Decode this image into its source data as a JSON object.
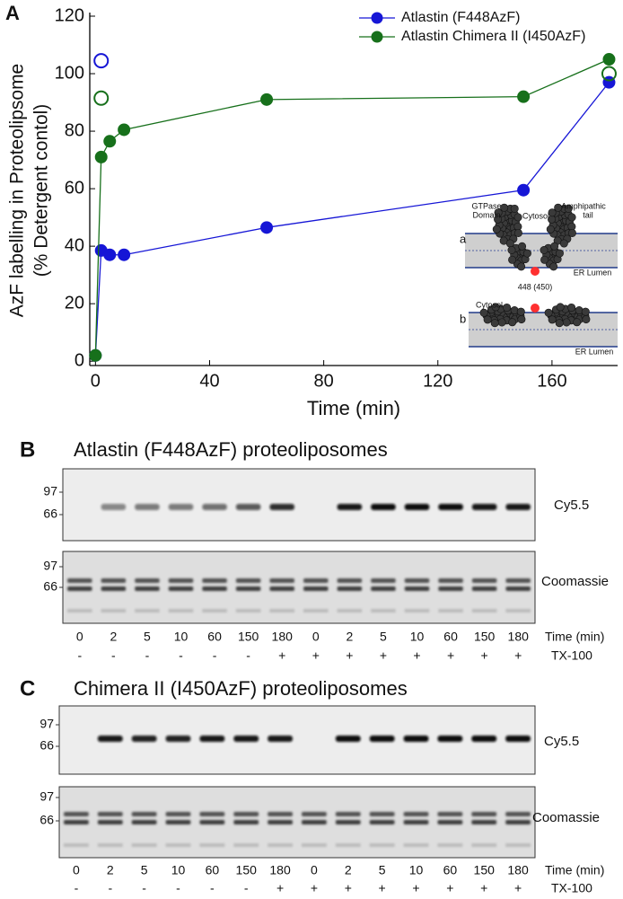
{
  "chart_data": {
    "type": "line",
    "series": [
      {
        "name": "Atlastin (F448AzF)",
        "color": "#1616d6",
        "x": [
          0,
          2,
          5,
          10,
          60,
          150,
          180
        ],
        "values": [
          2,
          38.5,
          37,
          37,
          46.5,
          59.5,
          97
        ]
      },
      {
        "name": "Atlastin Chimera II (I450AzF)",
        "color": "#17701b",
        "x": [
          0,
          2,
          5,
          10,
          60,
          150,
          180
        ],
        "values": [
          2,
          71,
          76.5,
          80.5,
          91,
          92,
          105
        ]
      },
      {
        "color": "#1616d6",
        "marker": "open",
        "x": [
          2
        ],
        "values": [
          104.5
        ]
      },
      {
        "color": "#17701b",
        "marker": "open",
        "x": [
          2,
          180
        ],
        "values": [
          91.5,
          100
        ]
      }
    ],
    "xlabel": "Time (min)",
    "ylabel": [
      "AzF labelling in Proteolipsome",
      "(% Detergent contol)"
    ],
    "xlim": [
      -2,
      183
    ],
    "xticks": [
      0,
      40,
      80,
      120,
      160
    ],
    "ylim": [
      -1.5,
      120
    ],
    "yticks": [
      0,
      20,
      40,
      60,
      80,
      100,
      120
    ],
    "legend": "upper right"
  },
  "inset": {
    "gtpase": [
      "GTPase",
      "Domain"
    ],
    "cytosol_a": "Cytosol",
    "tail": [
      "Amphipathic",
      "tail"
    ],
    "a": "a",
    "lumen_a": "ER Lumen",
    "site": "448 (450)",
    "b": "b",
    "cytosol_b": "Cytosol",
    "lumen_b": "ER Lumen"
  },
  "panels": [
    {
      "label": "A"
    },
    {
      "label": "B",
      "title": "Atlastin (F448AzF) proteoliposomes",
      "gels": [
        {
          "markers": [
            97,
            66
          ],
          "stain": "Cy5.5"
        },
        {
          "markers": [
            97,
            66
          ],
          "stain": "Coomassie"
        }
      ],
      "times": [
        0,
        2,
        5,
        10,
        60,
        150,
        180,
        0,
        2,
        5,
        10,
        60,
        150,
        180
      ],
      "time_label": "Time (min)",
      "detergent": [
        "-",
        "-",
        "-",
        "-",
        "-",
        "-",
        "+",
        "+",
        "+",
        "+",
        "+",
        "+",
        "+",
        "+"
      ],
      "detergent_label": "TX-100"
    },
    {
      "label": "C",
      "title": "Chimera II (I450AzF) proteoliposomes",
      "gels": [
        {
          "markers": [
            97,
            66
          ],
          "stain": "Cy5.5"
        },
        {
          "markers": [
            97,
            66
          ],
          "stain": "Coomassie"
        }
      ],
      "times": [
        0,
        2,
        5,
        10,
        60,
        150,
        180,
        0,
        2,
        5,
        10,
        60,
        150,
        180
      ],
      "time_label": "Time (min)",
      "detergent": [
        "-",
        "-",
        "-",
        "-",
        "-",
        "-",
        "+",
        "+",
        "+",
        "+",
        "+",
        "+",
        "+",
        "+"
      ],
      "detergent_label": "TX-100"
    }
  ]
}
